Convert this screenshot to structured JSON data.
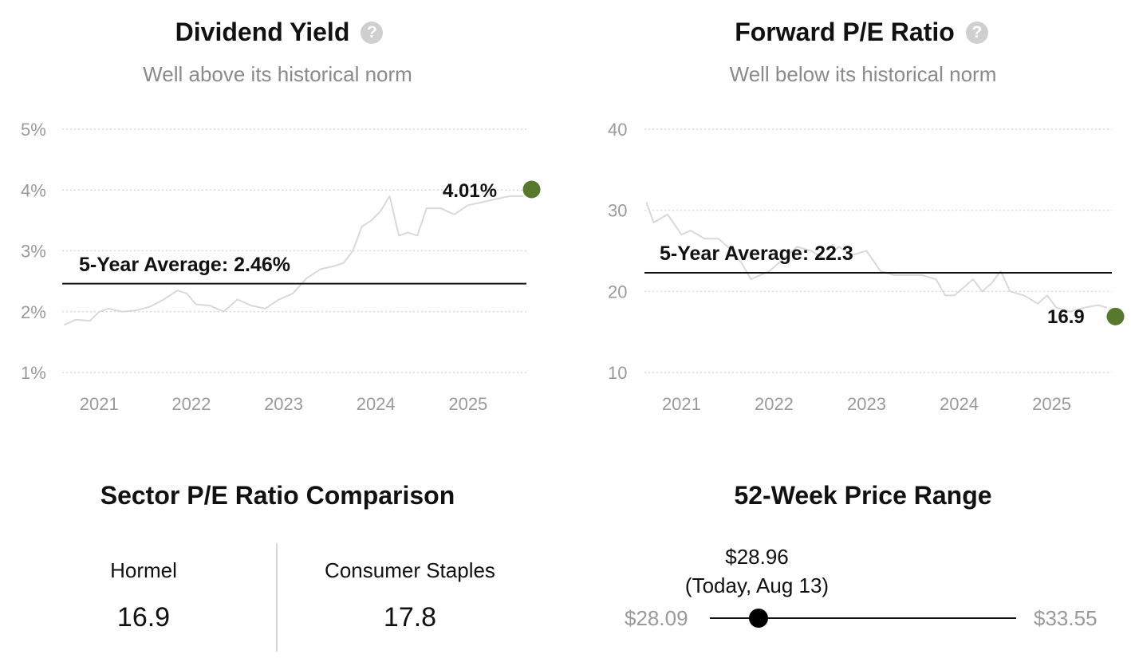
{
  "dividend_yield": {
    "title": "Dividend Yield",
    "subtitle": "Well above its historical norm",
    "avg_label": "5-Year Average: 2.46%",
    "current_label": "4.01%",
    "accent": "#56792b"
  },
  "forward_pe": {
    "title": "Forward P/E Ratio",
    "subtitle": "Well below its historical norm",
    "avg_label": "5-Year Average: 22.3",
    "current_label": "16.9",
    "accent": "#56792b"
  },
  "sector": {
    "title": "Sector P/E Ratio Comparison",
    "left_name": "Hormel",
    "left_value": "16.9",
    "right_name": "Consumer Staples",
    "right_value": "17.8"
  },
  "price_range": {
    "title": "52-Week Price Range",
    "current_price": "$28.96",
    "current_date": "(Today, Aug 13)",
    "low": "$28.09",
    "high": "$33.55",
    "low_value": 28.09,
    "high_value": 33.55,
    "current_value": 28.96
  },
  "chart_data": [
    {
      "type": "line",
      "title": "Dividend Yield",
      "ylim": [
        1,
        5
      ],
      "yticks": [
        "1%",
        "2%",
        "3%",
        "4%",
        "5%"
      ],
      "ytick_values": [
        1,
        2,
        3,
        4,
        5
      ],
      "xlim": [
        2020.6,
        2025.65
      ],
      "xticks": [
        "2021",
        "2022",
        "2023",
        "2024",
        "2025"
      ],
      "xtick_values": [
        2021,
        2022,
        2023,
        2024,
        2025
      ],
      "grid": true,
      "average": 2.46,
      "current": {
        "x": 2025.62,
        "y": 4.01
      },
      "series": [
        {
          "color": "#d9d9d9",
          "x": [
            2020.62,
            2020.75,
            2020.9,
            2021.0,
            2021.1,
            2021.25,
            2021.4,
            2021.55,
            2021.7,
            2021.85,
            2021.95,
            2022.05,
            2022.2,
            2022.35,
            2022.5,
            2022.65,
            2022.8,
            2022.95,
            2023.1,
            2023.25,
            2023.4,
            2023.55,
            2023.65,
            2023.75,
            2023.85,
            2023.95,
            2024.05,
            2024.15,
            2024.25,
            2024.35,
            2024.45,
            2024.55,
            2024.7,
            2024.85,
            2025.0,
            2025.15,
            2025.3,
            2025.45,
            2025.6
          ],
          "y": [
            1.78,
            1.87,
            1.85,
            2.0,
            2.05,
            2.0,
            2.02,
            2.08,
            2.2,
            2.35,
            2.3,
            2.12,
            2.1,
            2.0,
            2.2,
            2.1,
            2.05,
            2.2,
            2.3,
            2.55,
            2.7,
            2.75,
            2.8,
            3.0,
            3.4,
            3.5,
            3.65,
            3.9,
            3.25,
            3.3,
            3.25,
            3.7,
            3.7,
            3.6,
            3.75,
            3.8,
            3.85,
            3.9,
            3.9
          ]
        }
      ]
    },
    {
      "type": "line",
      "title": "Forward P/E Ratio",
      "ylim": [
        10,
        40
      ],
      "yticks": [
        "10",
        "20",
        "30",
        "40"
      ],
      "ytick_values": [
        10,
        20,
        30,
        40
      ],
      "xlim": [
        2020.6,
        2025.65
      ],
      "xticks": [
        "2021",
        "2022",
        "2023",
        "2024",
        "2025"
      ],
      "xtick_values": [
        2021,
        2022,
        2023,
        2024,
        2025
      ],
      "grid": true,
      "average": 22.3,
      "current": {
        "x": 2025.62,
        "y": 16.9
      },
      "series": [
        {
          "color": "#d9d9d9",
          "x": [
            2020.62,
            2020.7,
            2020.85,
            2021.0,
            2021.1,
            2021.25,
            2021.4,
            2021.55,
            2021.65,
            2021.75,
            2021.85,
            2021.95,
            2022.1,
            2022.25,
            2022.4,
            2022.55,
            2022.7,
            2022.85,
            2023.0,
            2023.15,
            2023.3,
            2023.45,
            2023.6,
            2023.75,
            2023.85,
            2023.95,
            2024.05,
            2024.15,
            2024.25,
            2024.35,
            2024.45,
            2024.55,
            2024.7,
            2024.85,
            2024.95,
            2025.05,
            2025.2,
            2025.35,
            2025.5,
            2025.6
          ],
          "y": [
            31,
            28.5,
            29.5,
            27,
            27.5,
            26.5,
            26.5,
            25,
            23.5,
            21.5,
            22,
            22.5,
            24,
            25.5,
            25,
            24,
            25.5,
            24.5,
            25,
            22.5,
            22,
            22,
            22,
            21.5,
            19.5,
            19.5,
            20.5,
            21.5,
            20,
            21,
            22.5,
            20,
            19.5,
            18.5,
            19.5,
            18,
            17.5,
            18,
            18.3,
            18
          ]
        }
      ]
    },
    {
      "type": "table",
      "title": "Sector P/E Ratio Comparison",
      "categories": [
        "Hormel",
        "Consumer Staples"
      ],
      "values": [
        16.9,
        17.8
      ]
    }
  ]
}
